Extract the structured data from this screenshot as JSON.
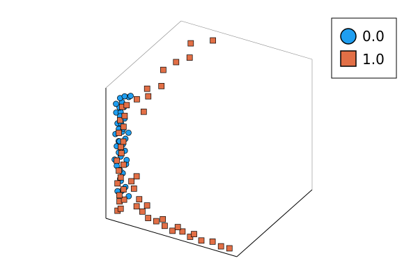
{
  "chart_data": {
    "type": "scatter",
    "projection": "3d",
    "grid": false,
    "legend": {
      "placement": "top-right"
    },
    "series": [
      {
        "name": "0.0",
        "marker": "circle",
        "color": "#1f9ef0",
        "points": [
          [
            0.08,
            0.05,
            0.3
          ],
          [
            0.1,
            0.05,
            0.35
          ],
          [
            0.06,
            0.04,
            0.4
          ],
          [
            0.12,
            0.06,
            0.42
          ],
          [
            0.05,
            0.03,
            0.45
          ],
          [
            0.09,
            0.04,
            0.48
          ],
          [
            0.07,
            0.05,
            0.5
          ],
          [
            0.11,
            0.06,
            0.52
          ],
          [
            0.06,
            0.04,
            0.55
          ],
          [
            0.1,
            0.05,
            0.57
          ],
          [
            0.08,
            0.03,
            0.6
          ],
          [
            0.12,
            0.05,
            0.62
          ],
          [
            0.05,
            0.04,
            0.64
          ],
          [
            0.09,
            0.06,
            0.66
          ],
          [
            0.07,
            0.05,
            0.68
          ],
          [
            0.11,
            0.04,
            0.7
          ],
          [
            0.06,
            0.05,
            0.72
          ],
          [
            0.1,
            0.03,
            0.74
          ],
          [
            0.08,
            0.06,
            0.76
          ],
          [
            0.12,
            0.04,
            0.78
          ],
          [
            0.05,
            0.05,
            0.8
          ],
          [
            0.09,
            0.04,
            0.82
          ],
          [
            0.07,
            0.06,
            0.84
          ],
          [
            0.11,
            0.05,
            0.86
          ],
          [
            0.06,
            0.03,
            0.88
          ],
          [
            0.1,
            0.04,
            0.9
          ],
          [
            0.08,
            0.05,
            0.92
          ],
          [
            0.14,
            0.06,
            0.94
          ],
          [
            0.12,
            0.04,
            0.95
          ],
          [
            0.16,
            0.05,
            0.96
          ],
          [
            0.08,
            0.06,
            0.28
          ],
          [
            0.12,
            0.05,
            0.25
          ],
          [
            0.1,
            0.04,
            0.22
          ],
          [
            0.06,
            0.05,
            0.2
          ],
          [
            0.14,
            0.06,
            0.18
          ],
          [
            0.09,
            0.03,
            0.38
          ],
          [
            0.13,
            0.05,
            0.46
          ],
          [
            0.07,
            0.06,
            0.58
          ],
          [
            0.15,
            0.04,
            0.68
          ],
          [
            0.08,
            0.05,
            0.78
          ]
        ]
      },
      {
        "name": "1.0",
        "marker": "square",
        "color": "#e26f46",
        "points": [
          [
            0.06,
            0.05,
            0.05
          ],
          [
            0.09,
            0.04,
            0.08
          ],
          [
            0.07,
            0.06,
            0.12
          ],
          [
            0.11,
            0.05,
            0.15
          ],
          [
            0.08,
            0.04,
            0.18
          ],
          [
            0.1,
            0.06,
            0.22
          ],
          [
            0.06,
            0.05,
            0.26
          ],
          [
            0.09,
            0.04,
            0.32
          ],
          [
            0.07,
            0.05,
            0.36
          ],
          [
            0.1,
            0.06,
            0.41
          ],
          [
            0.06,
            0.04,
            0.44
          ],
          [
            0.09,
            0.05,
            0.5
          ],
          [
            0.08,
            0.06,
            0.54
          ],
          [
            0.11,
            0.04,
            0.6
          ],
          [
            0.07,
            0.05,
            0.65
          ],
          [
            0.1,
            0.06,
            0.7
          ],
          [
            0.08,
            0.05,
            0.75
          ],
          [
            0.12,
            0.04,
            0.8
          ],
          [
            0.09,
            0.06,
            0.85
          ],
          [
            0.13,
            0.05,
            0.88
          ],
          [
            0.2,
            0.06,
            0.12
          ],
          [
            0.25,
            0.05,
            0.1
          ],
          [
            0.3,
            0.04,
            0.07
          ],
          [
            0.35,
            0.06,
            0.05
          ],
          [
            0.42,
            0.05,
            0.04
          ],
          [
            0.48,
            0.05,
            0.02
          ],
          [
            0.55,
            0.06,
            0.03
          ],
          [
            0.62,
            0.04,
            0.02
          ],
          [
            0.7,
            0.05,
            0.01
          ],
          [
            0.78,
            0.06,
            0.02
          ],
          [
            0.85,
            0.05,
            0.01
          ],
          [
            0.92,
            0.04,
            0.02
          ],
          [
            0.4,
            0.06,
            0.08
          ],
          [
            0.52,
            0.05,
            0.06
          ],
          [
            0.65,
            0.04,
            0.05
          ],
          [
            0.2,
            0.2,
            0.95
          ],
          [
            0.24,
            0.32,
            0.92
          ],
          [
            0.18,
            0.45,
            0.96
          ],
          [
            0.22,
            0.55,
            0.98
          ],
          [
            0.26,
            0.66,
            0.97
          ],
          [
            0.2,
            0.78,
            1.0
          ],
          [
            0.3,
            0.9,
            0.99
          ],
          [
            0.15,
            0.15,
            0.88
          ],
          [
            0.18,
            0.25,
            0.86
          ],
          [
            0.22,
            0.12,
            0.82
          ],
          [
            0.18,
            0.06,
            0.25
          ],
          [
            0.22,
            0.06,
            0.18
          ],
          [
            0.16,
            0.06,
            0.3
          ],
          [
            0.28,
            0.06,
            0.15
          ],
          [
            0.2,
            0.06,
            0.35
          ]
        ]
      }
    ]
  }
}
